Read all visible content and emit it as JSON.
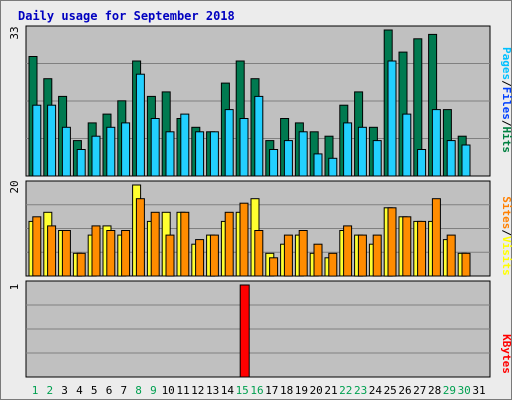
{
  "title": "Daily usage for September 2018",
  "chart_data": [
    {
      "type": "bar",
      "panel": "hits-files-pages",
      "title": "",
      "axis_max_label": "33",
      "ylim": [
        0,
        33
      ],
      "legend": [
        {
          "name": "Pages",
          "color": "#00c0ff"
        },
        {
          "name": "Files",
          "color": "#0040ff"
        },
        {
          "name": "Hits",
          "color": "#008040"
        }
      ],
      "categories": [
        1,
        2,
        3,
        4,
        5,
        6,
        7,
        8,
        9,
        10,
        11,
        12,
        13,
        14,
        15,
        16,
        17,
        18,
        19,
        20,
        21,
        22,
        23,
        24,
        25,
        26,
        27,
        28,
        29,
        30,
        31
      ],
      "series": [
        {
          "name": "Hits",
          "color": "#007a50",
          "values": [
            27,
            22,
            18,
            8,
            12,
            14,
            17,
            26,
            18,
            19,
            13,
            11,
            10,
            21,
            26,
            22,
            8,
            13,
            12,
            10,
            9,
            16,
            19,
            11,
            33,
            28,
            31,
            32,
            15,
            9,
            0
          ]
        },
        {
          "name": "Pages",
          "color": "#22d0ff",
          "values": [
            16,
            16,
            11,
            6,
            9,
            11,
            12,
            23,
            13,
            10,
            14,
            10,
            10,
            15,
            13,
            18,
            6,
            8,
            10,
            5,
            4,
            12,
            11,
            8,
            26,
            14,
            6,
            15,
            8,
            7,
            0
          ]
        }
      ]
    },
    {
      "type": "bar",
      "panel": "visits-sites",
      "title": "",
      "axis_max_label": "20",
      "ylim": [
        0,
        20
      ],
      "legend": [
        {
          "name": "Sites",
          "color": "#ff8000"
        },
        {
          "name": "Visits",
          "color": "#ffff00"
        }
      ],
      "categories": [
        1,
        2,
        3,
        4,
        5,
        6,
        7,
        8,
        9,
        10,
        11,
        12,
        13,
        14,
        15,
        16,
        17,
        18,
        19,
        20,
        21,
        22,
        23,
        24,
        25,
        26,
        27,
        28,
        29,
        30,
        31
      ],
      "series": [
        {
          "name": "Visits",
          "color": "#ffff30",
          "values": [
            12,
            14,
            10,
            5,
            9,
            11,
            9,
            20,
            12,
            14,
            14,
            7,
            9,
            12,
            14,
            17,
            5,
            7,
            9,
            5,
            4,
            10,
            9,
            7,
            15,
            13,
            12,
            12,
            8,
            5,
            0
          ]
        },
        {
          "name": "Sites",
          "color": "#ff8c00",
          "values": [
            13,
            11,
            10,
            5,
            11,
            10,
            10,
            17,
            14,
            9,
            14,
            8,
            9,
            14,
            16,
            10,
            4,
            9,
            10,
            7,
            5,
            11,
            9,
            9,
            15,
            13,
            12,
            17,
            9,
            5,
            0
          ]
        }
      ]
    },
    {
      "type": "bar",
      "panel": "kbytes",
      "title": "",
      "axis_max_label": "1",
      "ylim": [
        0,
        1
      ],
      "legend": [
        {
          "name": "KBytes",
          "color": "#ff0000"
        }
      ],
      "categories": [
        1,
        2,
        3,
        4,
        5,
        6,
        7,
        8,
        9,
        10,
        11,
        12,
        13,
        14,
        15,
        16,
        17,
        18,
        19,
        20,
        21,
        22,
        23,
        24,
        25,
        26,
        27,
        28,
        29,
        30,
        31
      ],
      "series": [
        {
          "name": "KBytes",
          "color": "#ff0000",
          "values": [
            0,
            0,
            0,
            0,
            0,
            0,
            0,
            0,
            0,
            0,
            0,
            0,
            0,
            0,
            1,
            0,
            0,
            0,
            0,
            0,
            0,
            0,
            0,
            0,
            0,
            0,
            0,
            0,
            0,
            0,
            0
          ]
        }
      ]
    }
  ],
  "day_labels": [
    "1",
    "2",
    "3",
    "4",
    "5",
    "6",
    "7",
    "8",
    "9",
    "10",
    "11",
    "12",
    "13",
    "14",
    "15",
    "16",
    "17",
    "18",
    "19",
    "20",
    "21",
    "22",
    "23",
    "24",
    "25",
    "26",
    "27",
    "28",
    "29",
    "30",
    "31"
  ],
  "weekend_days": [
    1,
    2,
    8,
    9,
    15,
    16,
    22,
    23,
    29,
    30
  ],
  "colors": {
    "weekday_label": "#000000",
    "weekend_label": "#00a050",
    "plot_bg": "#c0c0c0",
    "grid": "#808080",
    "bar_outline": "#000000"
  }
}
